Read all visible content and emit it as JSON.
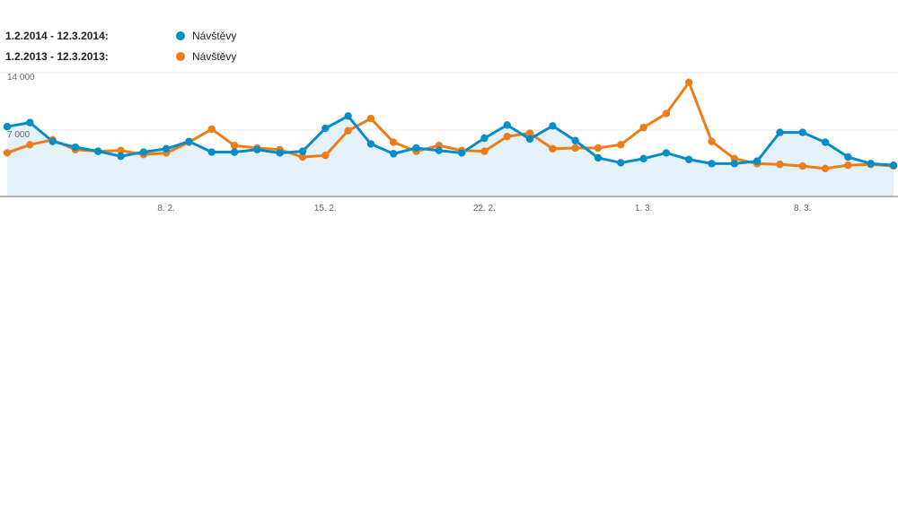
{
  "chart_data": {
    "type": "line",
    "title": "",
    "xlabel": "",
    "ylabel": "",
    "ylim": [
      0,
      14000
    ],
    "y_ticks": [
      {
        "value": 14000,
        "label": "14 000"
      },
      {
        "value": 7000,
        "label": "7 000"
      }
    ],
    "x_ticks": [
      {
        "index": 7,
        "label": "8. 2."
      },
      {
        "index": 14,
        "label": "15. 2."
      },
      {
        "index": 21,
        "label": "22. 2."
      },
      {
        "index": 28,
        "label": "1. 3."
      },
      {
        "index": 35,
        "label": "8. 3."
      }
    ],
    "legend_placement": "top-left",
    "area_under": "series_0",
    "series": [
      {
        "range_label": "1.2.2014 - 12.3.2014:",
        "name": "Návštěvy",
        "color": "#058DC7",
        "values": [
          8400,
          8900,
          6600,
          5900,
          5400,
          4800,
          5300,
          5700,
          6600,
          5300,
          5300,
          5600,
          5200,
          5400,
          8200,
          9700,
          6300,
          5100,
          5800,
          5500,
          5200,
          7000,
          8600,
          6900,
          8500,
          6700,
          4600,
          4000,
          4500,
          5200,
          4400,
          3900,
          3900,
          4200,
          7700,
          7700,
          6500,
          4700,
          3900,
          3700
        ]
      },
      {
        "range_label": "1.2.2013 - 12.3.2013:",
        "name": "Návštěvy",
        "color": "#ED7E17",
        "values": [
          5200,
          6200,
          6800,
          5600,
          5400,
          5500,
          5000,
          5200,
          6500,
          8100,
          6100,
          5800,
          5600,
          4700,
          4900,
          7900,
          9400,
          6500,
          5400,
          6100,
          5500,
          5400,
          7200,
          7600,
          5700,
          5800,
          5800,
          6200,
          8300,
          10000,
          13800,
          6600,
          4500,
          3900,
          3800,
          3600,
          3300,
          3700,
          3800,
          3600
        ]
      }
    ]
  }
}
